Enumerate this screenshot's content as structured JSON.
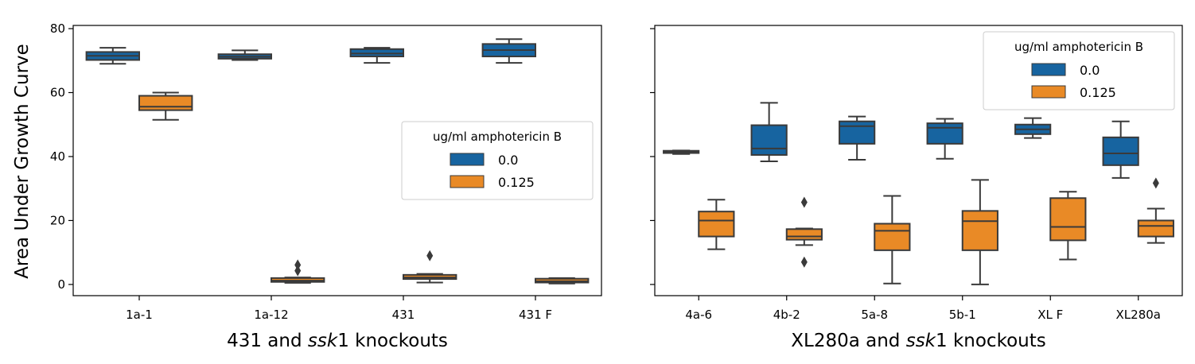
{
  "y_axis_label": "Area Under Growth Curve",
  "colors": {
    "series_0": "#1764a0",
    "series_1": "#e98a26",
    "lines": "#3a3a3a"
  },
  "chart_data": [
    {
      "type": "box",
      "xlabel_parts": [
        {
          "text": "431 and ",
          "italic": false
        },
        {
          "text": "ssk",
          "italic": true
        },
        {
          "text": "1 knockouts",
          "italic": false
        }
      ],
      "ylabel": "Area Under Growth Curve",
      "ylim": [
        -3.5,
        81
      ],
      "yticks": [
        0,
        20,
        40,
        60,
        80
      ],
      "categories": [
        "1a-1",
        "1a-12",
        "431",
        "431 F"
      ],
      "legend": {
        "title": "ug/ml amphotericin B",
        "placement": "center-right",
        "entries": [
          "0.0",
          "0.125"
        ]
      },
      "series": [
        {
          "name": "0.0",
          "boxes": [
            {
              "min": 69,
              "q1": 70.2,
              "median": 71.5,
              "q3": 72.7,
              "max": 74,
              "outliers": []
            },
            {
              "min": 70.2,
              "q1": 70.6,
              "median": 71.2,
              "q3": 72,
              "max": 73.2,
              "outliers": []
            },
            {
              "min": 69.3,
              "q1": 71.3,
              "median": 72.2,
              "q3": 73.6,
              "max": 74,
              "outliers": []
            },
            {
              "min": 69.3,
              "q1": 71.3,
              "median": 73.3,
              "q3": 75.2,
              "max": 76.7,
              "outliers": []
            }
          ]
        },
        {
          "name": "0.125",
          "boxes": [
            {
              "min": 51.5,
              "q1": 54.5,
              "median": 55.6,
              "q3": 59,
              "max": 60,
              "outliers": []
            },
            {
              "min": 0.5,
              "q1": 0.8,
              "median": 1.2,
              "q3": 2,
              "max": 2.2,
              "outliers": [
                4.3,
                6.1
              ]
            },
            {
              "min": 0.6,
              "q1": 1.7,
              "median": 2.2,
              "q3": 3,
              "max": 3.3,
              "outliers": [
                9
              ]
            },
            {
              "min": 0.3,
              "q1": 0.6,
              "median": 1,
              "q3": 1.8,
              "max": 2,
              "outliers": []
            }
          ]
        }
      ]
    },
    {
      "type": "box",
      "xlabel_parts": [
        {
          "text": "XL280a and ",
          "italic": false
        },
        {
          "text": "ssk",
          "italic": true
        },
        {
          "text": "1 knockouts",
          "italic": false
        }
      ],
      "ylim": [
        -3.5,
        81
      ],
      "yticks": [
        0,
        20,
        40,
        60,
        80
      ],
      "categories": [
        "4a-6",
        "4b-2",
        "5a-8",
        "5b-1",
        "XL F",
        "XL280a"
      ],
      "legend": {
        "title": "ug/ml amphotericin B",
        "placement": "upper-right",
        "entries": [
          "0.0",
          "0.125"
        ]
      },
      "series": [
        {
          "name": "0.0",
          "boxes": [
            {
              "min": 40.8,
              "q1": 41.1,
              "median": 41.4,
              "q3": 41.8,
              "max": 41.9,
              "outliers": []
            },
            {
              "min": 38.5,
              "q1": 40.5,
              "median": 42.5,
              "q3": 49.8,
              "max": 56.8,
              "outliers": []
            },
            {
              "min": 39,
              "q1": 44,
              "median": 49.5,
              "q3": 51,
              "max": 52.5,
              "outliers": []
            },
            {
              "min": 39.3,
              "q1": 44,
              "median": 49,
              "q3": 50.4,
              "max": 51.8,
              "outliers": []
            },
            {
              "min": 45.8,
              "q1": 47,
              "median": 48.5,
              "q3": 50,
              "max": 52,
              "outliers": []
            },
            {
              "min": 33.3,
              "q1": 37.3,
              "median": 41,
              "q3": 46,
              "max": 51,
              "outliers": []
            }
          ]
        },
        {
          "name": "0.125",
          "boxes": [
            {
              "min": 11,
              "q1": 15,
              "median": 20,
              "q3": 22.8,
              "max": 26.5,
              "outliers": []
            },
            {
              "min": 12.3,
              "q1": 14,
              "median": 15,
              "q3": 17.3,
              "max": 17.5,
              "outliers": [
                7,
                25.7
              ]
            },
            {
              "min": 0.3,
              "q1": 10.7,
              "median": 16.8,
              "q3": 19,
              "max": 27.7,
              "outliers": []
            },
            {
              "min": 0,
              "q1": 10.7,
              "median": 19.8,
              "q3": 23,
              "max": 32.7,
              "outliers": []
            },
            {
              "min": 7.8,
              "q1": 13.8,
              "median": 18,
              "q3": 27,
              "max": 29,
              "outliers": []
            },
            {
              "min": 13,
              "q1": 15,
              "median": 18.3,
              "q3": 20,
              "max": 23.7,
              "outliers": [
                31.7
              ]
            }
          ]
        }
      ]
    }
  ]
}
